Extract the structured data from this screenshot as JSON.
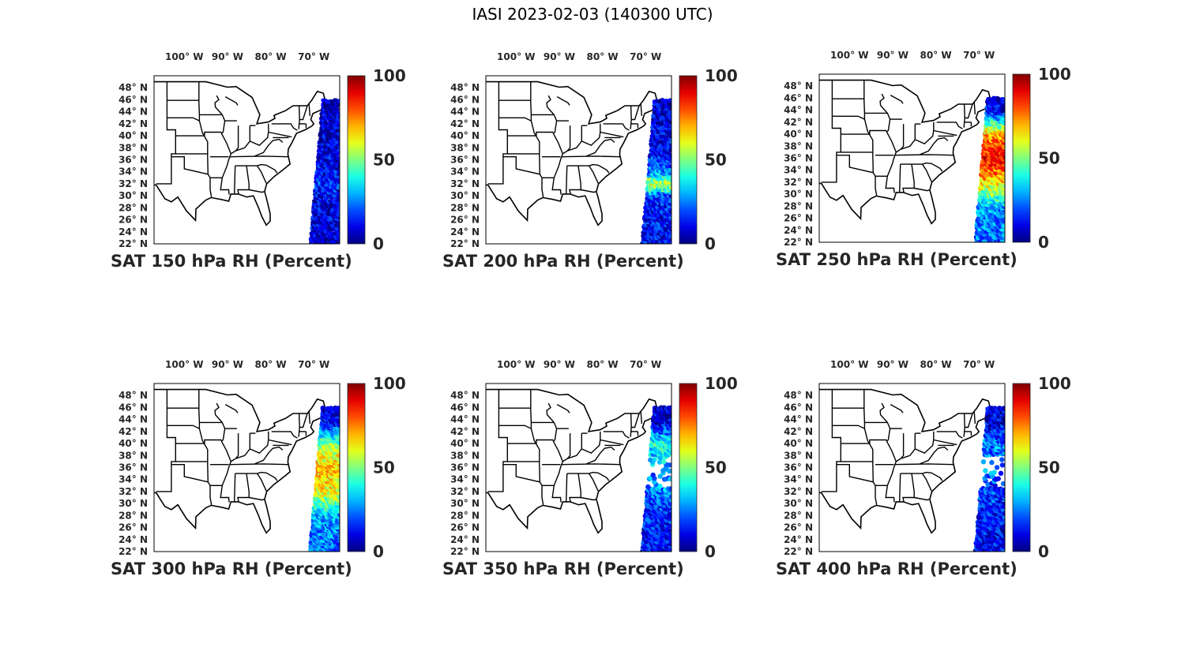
{
  "figure": {
    "title": "IASI 2023-02-03 (140300 UTC)"
  },
  "axes": {
    "lon_ticks": [
      {
        "value": -100,
        "label": "100° W"
      },
      {
        "value": -90,
        "label": "90° W"
      },
      {
        "value": -80,
        "label": "80° W"
      },
      {
        "value": -70,
        "label": "70° W"
      }
    ],
    "lat_ticks": [
      {
        "value": 48,
        "label": "48° N"
      },
      {
        "value": 46,
        "label": "46° N"
      },
      {
        "value": 44,
        "label": "44° N"
      },
      {
        "value": 42,
        "label": "42° N"
      },
      {
        "value": 40,
        "label": "40° N"
      },
      {
        "value": 38,
        "label": "38° N"
      },
      {
        "value": 36,
        "label": "36° N"
      },
      {
        "value": 34,
        "label": "34° N"
      },
      {
        "value": 32,
        "label": "32° N"
      },
      {
        "value": 30,
        "label": "30° N"
      },
      {
        "value": 28,
        "label": "28° N"
      },
      {
        "value": 26,
        "label": "26° N"
      },
      {
        "value": 24,
        "label": "24° N"
      },
      {
        "value": 22,
        "label": "22° N"
      }
    ],
    "lon_range": [
      -107,
      -64
    ],
    "lat_range": [
      22,
      50
    ]
  },
  "colorbar": {
    "colormap": "jet",
    "min": 0,
    "max": 100,
    "ticks": [
      {
        "value": 0,
        "label": "0"
      },
      {
        "value": 50,
        "label": "50"
      },
      {
        "value": 100,
        "label": "100"
      }
    ]
  },
  "panels": [
    {
      "title": "SAT 150 hPa RH (Percent)",
      "level": 150,
      "swath_lat": [
        22,
        46
      ],
      "rh_by_lat": [
        {
          "lat": 22,
          "rh": 8
        },
        {
          "lat": 30,
          "rh": 10
        },
        {
          "lat": 32,
          "rh": 18
        },
        {
          "lat": 34,
          "rh": 12
        },
        {
          "lat": 38,
          "rh": 8
        },
        {
          "lat": 44,
          "rh": 6
        }
      ]
    },
    {
      "title": "SAT 200 hPa RH (Percent)",
      "level": 200,
      "swath_lat": [
        22,
        46
      ],
      "rh_by_lat": [
        {
          "lat": 22,
          "rh": 12
        },
        {
          "lat": 30,
          "rh": 15
        },
        {
          "lat": 32,
          "rh": 60
        },
        {
          "lat": 34,
          "rh": 25
        },
        {
          "lat": 38,
          "rh": 12
        },
        {
          "lat": 44,
          "rh": 8
        }
      ]
    },
    {
      "title": "SAT 250 hPa RH (Percent)",
      "level": 250,
      "swath_lat": [
        22,
        46
      ],
      "rh_by_lat": [
        {
          "lat": 22,
          "rh": 22
        },
        {
          "lat": 28,
          "rh": 28
        },
        {
          "lat": 32,
          "rh": 65
        },
        {
          "lat": 36,
          "rh": 88
        },
        {
          "lat": 40,
          "rh": 72
        },
        {
          "lat": 44,
          "rh": 12
        }
      ]
    },
    {
      "title": "SAT 300 hPa RH (Percent)",
      "level": 300,
      "swath_lat": [
        22,
        46
      ],
      "rh_by_lat": [
        {
          "lat": 22,
          "rh": 22
        },
        {
          "lat": 28,
          "rh": 30
        },
        {
          "lat": 32,
          "rh": 60
        },
        {
          "lat": 36,
          "rh": 70
        },
        {
          "lat": 40,
          "rh": 50
        },
        {
          "lat": 44,
          "rh": 10
        }
      ]
    },
    {
      "title": "SAT 350 hPa RH (Percent)",
      "level": 350,
      "swath_lat": [
        22,
        46
      ],
      "rh_by_lat": [
        {
          "lat": 22,
          "rh": 12
        },
        {
          "lat": 28,
          "rh": 15
        },
        {
          "lat": 32,
          "rh": 25
        },
        {
          "lat": 36,
          "rh": 28
        },
        {
          "lat": 40,
          "rh": 40
        },
        {
          "lat": 44,
          "rh": 8
        }
      ]
    },
    {
      "title": "SAT 400 hPa RH (Percent)",
      "level": 400,
      "swath_lat": [
        22,
        46
      ],
      "rh_by_lat": [
        {
          "lat": 22,
          "rh": 12
        },
        {
          "lat": 28,
          "rh": 14
        },
        {
          "lat": 32,
          "rh": 18
        },
        {
          "lat": 35,
          "rh": 22
        },
        {
          "lat": 40,
          "rh": 25
        },
        {
          "lat": 44,
          "rh": 8
        }
      ]
    }
  ]
}
